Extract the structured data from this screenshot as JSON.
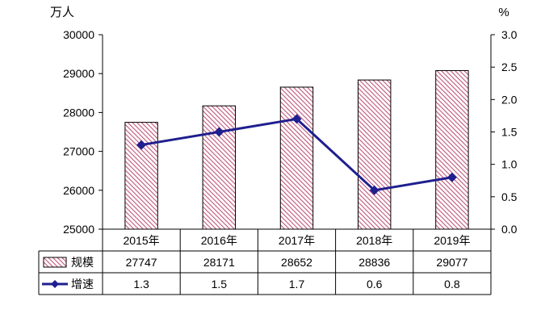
{
  "chart_data": {
    "type": "bar",
    "categories": [
      "2015年",
      "2016年",
      "2017年",
      "2018年",
      "2019年"
    ],
    "series": [
      {
        "name": "规模",
        "type": "bar",
        "axis": "left",
        "values": [
          27747,
          28171,
          28652,
          28836,
          29077
        ]
      },
      {
        "name": "增速",
        "type": "line",
        "axis": "right",
        "values": [
          1.3,
          1.5,
          1.7,
          0.6,
          0.8
        ]
      }
    ],
    "left_axis": {
      "unit": "万人",
      "range": [
        25000,
        30000
      ],
      "ticks": [
        "25000",
        "26000",
        "27000",
        "28000",
        "29000",
        "30000"
      ]
    },
    "right_axis": {
      "unit": "%",
      "range": [
        0,
        3
      ],
      "ticks": [
        "0.0",
        "0.5",
        "1.0",
        "1.5",
        "2.0",
        "2.5",
        "3.0"
      ]
    },
    "data_table": true,
    "colors": {
      "bar_fill": "#c0557a",
      "line": "#1f1f8f",
      "axis": "#000000"
    }
  }
}
